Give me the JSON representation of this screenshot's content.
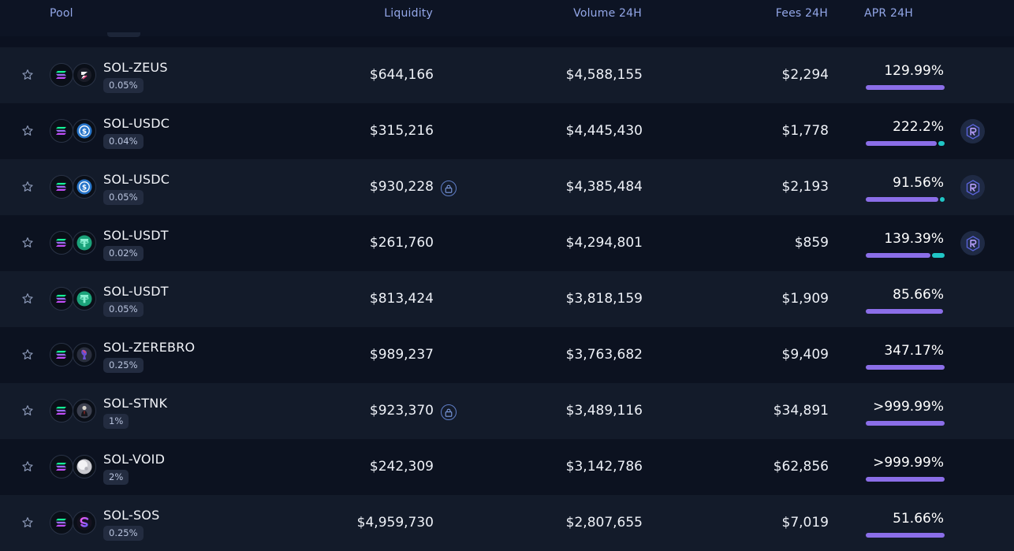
{
  "header": {
    "pool": "Pool",
    "liquidity": "Liquidity",
    "volume": "Volume 24H",
    "fees": "Fees 24H",
    "apr": "APR 24H"
  },
  "rows": [
    {
      "pair": "SOL-ZEUS",
      "fee_tier": "0.05%",
      "liquidity": "$644,166",
      "locked": false,
      "volume": "$4,588,155",
      "fees": "$2,294",
      "apr": "129.99%",
      "apr_fill": 1.0,
      "apr_teal": 0,
      "reward": false,
      "token_b": "zeus"
    },
    {
      "pair": "SOL-USDC",
      "fee_tier": "0.04%",
      "liquidity": "$315,216",
      "locked": false,
      "volume": "$4,445,430",
      "fees": "$1,778",
      "apr": "222.2%",
      "apr_fill": 0.9,
      "apr_teal": 0.08,
      "reward": true,
      "token_b": "usdc"
    },
    {
      "pair": "SOL-USDC",
      "fee_tier": "0.05%",
      "liquidity": "$930,228",
      "locked": true,
      "volume": "$4,385,484",
      "fees": "$2,193",
      "apr": "91.56%",
      "apr_fill": 0.92,
      "apr_teal": 0.06,
      "reward": true,
      "token_b": "usdc"
    },
    {
      "pair": "SOL-USDT",
      "fee_tier": "0.02%",
      "liquidity": "$261,760",
      "locked": false,
      "volume": "$4,294,801",
      "fees": "$859",
      "apr": "139.39%",
      "apr_fill": 0.84,
      "apr_teal": 0.16,
      "reward": true,
      "token_b": "usdt"
    },
    {
      "pair": "SOL-USDT",
      "fee_tier": "0.05%",
      "liquidity": "$813,424",
      "locked": false,
      "volume": "$3,818,159",
      "fees": "$1,909",
      "apr": "85.66%",
      "apr_fill": 0.98,
      "apr_teal": 0,
      "reward": false,
      "token_b": "usdt"
    },
    {
      "pair": "SOL-ZEREBRO",
      "fee_tier": "0.25%",
      "liquidity": "$989,237",
      "locked": false,
      "volume": "$3,763,682",
      "fees": "$9,409",
      "apr": "347.17%",
      "apr_fill": 1.0,
      "apr_teal": 0,
      "reward": false,
      "token_b": "zerebro"
    },
    {
      "pair": "SOL-STNK",
      "fee_tier": "1%",
      "liquidity": "$923,370",
      "locked": true,
      "volume": "$3,489,116",
      "fees": "$34,891",
      "apr": ">999.99%",
      "apr_fill": 1.0,
      "apr_teal": 0,
      "reward": false,
      "token_b": "stnk"
    },
    {
      "pair": "SOL-VOID",
      "fee_tier": "2%",
      "liquidity": "$242,309",
      "locked": false,
      "volume": "$3,142,786",
      "fees": "$62,856",
      "apr": ">999.99%",
      "apr_fill": 1.0,
      "apr_teal": 0,
      "reward": false,
      "token_b": "void"
    },
    {
      "pair": "SOL-SOS",
      "fee_tier": "0.25%",
      "liquidity": "$4,959,730",
      "locked": false,
      "volume": "$2,807,655",
      "fees": "$7,019",
      "apr": "51.66%",
      "apr_fill": 1.0,
      "apr_teal": 0,
      "reward": false,
      "token_b": "sos"
    }
  ],
  "colors": {
    "apr_bar": "#8b6ee8",
    "apr_bar_secondary": "#20c6c6",
    "header_text": "#93a7e8"
  },
  "icons": {
    "star": "star-icon",
    "lock": "lock-icon",
    "reward": "raydium-reward-icon",
    "token_a": "sol-token-icon"
  }
}
